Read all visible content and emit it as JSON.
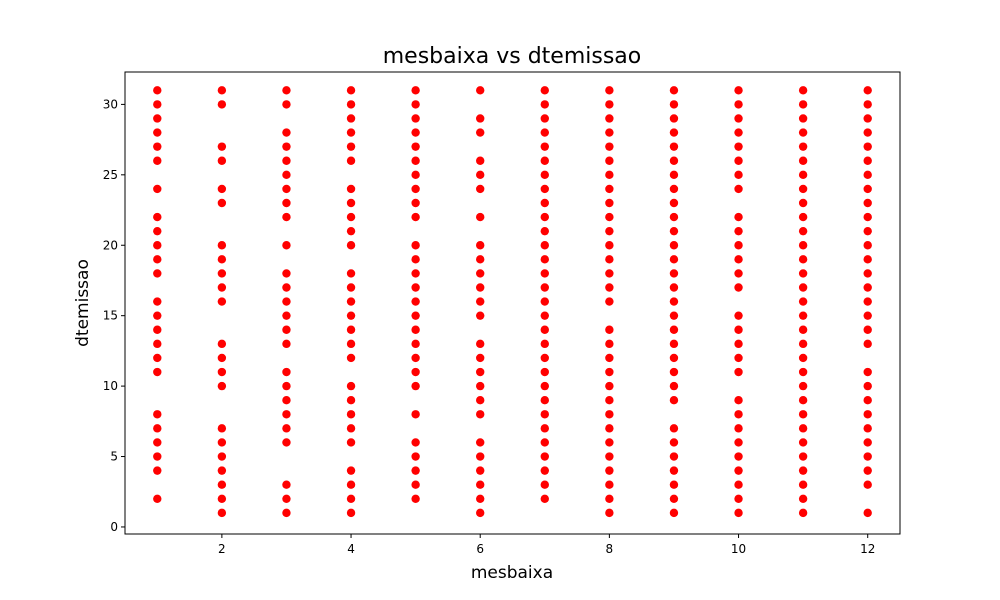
{
  "chart_data": {
    "type": "scatter",
    "title": "mesbaixa vs dtemissao",
    "xlabel": "mesbaixa",
    "ylabel": "dtemissao",
    "xlim": [
      0.5,
      12.5
    ],
    "ylim": [
      -0.5,
      32.3
    ],
    "xticks": [
      2,
      4,
      6,
      8,
      10,
      12
    ],
    "yticks": [
      0,
      5,
      10,
      15,
      20,
      25,
      30
    ],
    "grid": false,
    "marker_color": "#ff0000",
    "series": [
      {
        "points": [
          {
            "x": 1,
            "y": [
              2,
              4,
              5,
              6,
              7,
              8,
              11,
              12,
              13,
              14,
              15,
              16,
              18,
              19,
              20,
              21,
              22,
              24,
              26,
              27,
              28,
              29,
              30,
              31
            ]
          },
          {
            "x": 2,
            "y": [
              1,
              2,
              3,
              4,
              5,
              6,
              7,
              10,
              11,
              12,
              13,
              16,
              17,
              18,
              19,
              20,
              23,
              24,
              26,
              27,
              30,
              31
            ]
          },
          {
            "x": 3,
            "y": [
              1,
              2,
              3,
              6,
              7,
              8,
              9,
              10,
              11,
              13,
              14,
              15,
              16,
              17,
              18,
              20,
              22,
              23,
              24,
              25,
              26,
              27,
              28,
              30,
              31
            ]
          },
          {
            "x": 4,
            "y": [
              1,
              2,
              3,
              4,
              6,
              7,
              8,
              9,
              10,
              12,
              13,
              14,
              15,
              16,
              17,
              18,
              20,
              21,
              22,
              23,
              24,
              26,
              27,
              28,
              29,
              30,
              31
            ]
          },
          {
            "x": 5,
            "y": [
              2,
              3,
              4,
              5,
              6,
              8,
              10,
              11,
              12,
              13,
              14,
              15,
              16,
              17,
              18,
              19,
              20,
              22,
              23,
              24,
              25,
              26,
              27,
              28,
              29,
              30,
              31
            ]
          },
          {
            "x": 6,
            "y": [
              1,
              2,
              3,
              4,
              5,
              6,
              8,
              9,
              10,
              11,
              12,
              13,
              15,
              16,
              17,
              18,
              19,
              20,
              22,
              24,
              25,
              26,
              28,
              29,
              31
            ]
          },
          {
            "x": 7,
            "y": [
              2,
              3,
              4,
              5,
              6,
              7,
              8,
              9,
              10,
              11,
              12,
              13,
              14,
              15,
              16,
              17,
              18,
              19,
              20,
              21,
              22,
              23,
              24,
              25,
              26,
              27,
              28,
              29,
              30,
              31
            ]
          },
          {
            "x": 8,
            "y": [
              1,
              2,
              3,
              4,
              5,
              6,
              7,
              8,
              9,
              10,
              11,
              12,
              13,
              14,
              16,
              17,
              18,
              19,
              20,
              21,
              22,
              23,
              24,
              25,
              26,
              27,
              28,
              29,
              30,
              31
            ]
          },
          {
            "x": 9,
            "y": [
              1,
              2,
              3,
              4,
              5,
              6,
              7,
              9,
              10,
              11,
              12,
              13,
              14,
              15,
              16,
              17,
              18,
              19,
              20,
              21,
              22,
              23,
              24,
              25,
              26,
              27,
              28,
              29,
              30,
              31
            ]
          },
          {
            "x": 10,
            "y": [
              1,
              2,
              3,
              4,
              5,
              6,
              7,
              8,
              9,
              11,
              12,
              13,
              14,
              15,
              17,
              18,
              19,
              20,
              21,
              22,
              24,
              25,
              26,
              27,
              28,
              29,
              30,
              31
            ]
          },
          {
            "x": 11,
            "y": [
              1,
              2,
              3,
              4,
              5,
              6,
              7,
              8,
              9,
              10,
              11,
              12,
              13,
              14,
              15,
              16,
              17,
              18,
              19,
              20,
              21,
              22,
              23,
              24,
              25,
              26,
              27,
              28,
              29,
              30,
              31
            ]
          },
          {
            "x": 12,
            "y": [
              1,
              3,
              4,
              5,
              6,
              7,
              8,
              9,
              10,
              11,
              13,
              14,
              15,
              16,
              17,
              18,
              19,
              20,
              21,
              22,
              23,
              24,
              25,
              26,
              27,
              28,
              29,
              30,
              31
            ]
          }
        ]
      }
    ]
  }
}
